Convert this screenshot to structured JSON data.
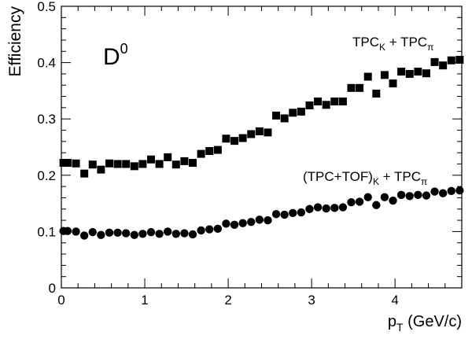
{
  "chart_data": {
    "type": "scatter",
    "xlabel_main": "p",
    "xlabel_sub": "T",
    "xlabel_unit": " (GeV/c)",
    "ylabel": "Efficiency",
    "xlim": [
      0,
      4.8
    ],
    "ylim": [
      0,
      0.5
    ],
    "xticks": [
      "0",
      "1",
      "2",
      "3",
      "4"
    ],
    "yticks": [
      "0",
      "0.1",
      "0.2",
      "0.3",
      "0.4",
      "0.5"
    ],
    "annotation": {
      "main": "D",
      "sup": "0"
    },
    "series": [
      {
        "name": "TPCK + TPCπ",
        "label": {
          "a": "TPC",
          "a_sub": "K",
          "b": " + TPC",
          "b_sub": "π"
        },
        "marker": "square",
        "x": [
          0.025,
          0.075,
          0.175,
          0.275,
          0.375,
          0.475,
          0.575,
          0.675,
          0.775,
          0.875,
          0.975,
          1.075,
          1.175,
          1.275,
          1.375,
          1.475,
          1.575,
          1.675,
          1.775,
          1.875,
          1.975,
          2.075,
          2.175,
          2.275,
          2.375,
          2.475,
          2.575,
          2.675,
          2.775,
          2.875,
          2.975,
          3.075,
          3.175,
          3.275,
          3.375,
          3.475,
          3.575,
          3.675,
          3.775,
          3.875,
          3.975,
          4.075,
          4.175,
          4.275,
          4.375,
          4.475,
          4.575,
          4.675,
          4.775
        ],
        "y": [
          0.222,
          0.222,
          0.221,
          0.203,
          0.219,
          0.21,
          0.221,
          0.22,
          0.22,
          0.216,
          0.22,
          0.228,
          0.22,
          0.232,
          0.219,
          0.225,
          0.222,
          0.238,
          0.243,
          0.245,
          0.265,
          0.261,
          0.266,
          0.273,
          0.278,
          0.276,
          0.306,
          0.301,
          0.311,
          0.313,
          0.324,
          0.331,
          0.325,
          0.331,
          0.331,
          0.355,
          0.355,
          0.375,
          0.345,
          0.378,
          0.363,
          0.384,
          0.38,
          0.384,
          0.381,
          0.401,
          0.395,
          0.404,
          0.405
        ]
      },
      {
        "name": "(TPC+TOF)K + TPCπ",
        "label": {
          "a": "(TPC+TOF)",
          "a_sub": "K",
          "b": " + TPC",
          "b_sub": "π"
        },
        "marker": "circle",
        "x": [
          0.025,
          0.075,
          0.175,
          0.275,
          0.375,
          0.475,
          0.575,
          0.675,
          0.775,
          0.875,
          0.975,
          1.075,
          1.175,
          1.275,
          1.375,
          1.475,
          1.575,
          1.675,
          1.775,
          1.875,
          1.975,
          2.075,
          2.175,
          2.275,
          2.375,
          2.475,
          2.575,
          2.675,
          2.775,
          2.875,
          2.975,
          3.075,
          3.175,
          3.275,
          3.375,
          3.475,
          3.575,
          3.675,
          3.775,
          3.875,
          3.975,
          4.075,
          4.175,
          4.275,
          4.375,
          4.475,
          4.575,
          4.675,
          4.775
        ],
        "y": [
          0.101,
          0.101,
          0.1,
          0.093,
          0.099,
          0.094,
          0.098,
          0.098,
          0.097,
          0.094,
          0.096,
          0.099,
          0.096,
          0.1,
          0.096,
          0.097,
          0.095,
          0.102,
          0.104,
          0.105,
          0.114,
          0.112,
          0.115,
          0.117,
          0.121,
          0.12,
          0.131,
          0.13,
          0.133,
          0.134,
          0.14,
          0.143,
          0.141,
          0.142,
          0.143,
          0.152,
          0.153,
          0.161,
          0.147,
          0.161,
          0.155,
          0.165,
          0.163,
          0.165,
          0.164,
          0.171,
          0.168,
          0.172,
          0.173
        ]
      }
    ]
  }
}
